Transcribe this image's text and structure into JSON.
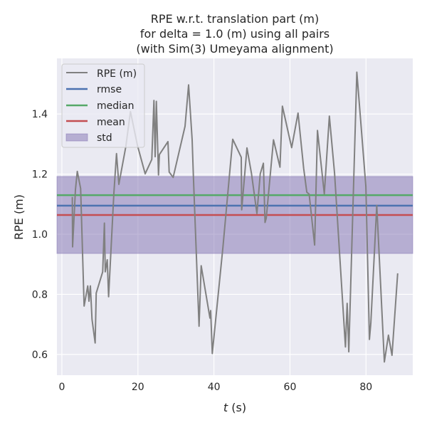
{
  "chart_data": {
    "type": "line",
    "title": [
      "RPE w.r.t. translation part (m)",
      "for delta = 1.0 (m) using all pairs",
      "(with Sim(3) Umeyama alignment)"
    ],
    "xlabel_italic": "t",
    "xlabel_unit": " (s)",
    "ylabel": "RPE (m)",
    "xlim": [
      -1.3,
      92.3
    ],
    "ylim": [
      0.531,
      1.585
    ],
    "xticks": [
      0,
      20,
      40,
      60,
      80
    ],
    "xtick_labels": [
      "0",
      "20",
      "40",
      "60",
      "80"
    ],
    "yticks": [
      0.6,
      0.8,
      1.0,
      1.2,
      1.4
    ],
    "ytick_labels": [
      "0.6",
      "0.8",
      "1.0",
      "1.2",
      "1.4"
    ],
    "grid": true,
    "legend_position": "top-left",
    "legend": [
      "RPE (m)",
      "rmse",
      "median",
      "mean",
      "std"
    ],
    "colors": {
      "rpe": "#808080",
      "rmse": "#4c72b0",
      "median": "#55a868",
      "mean": "#c44e52",
      "std": "#8172b2",
      "bg": "#eaeaf2"
    },
    "stats": {
      "rmse": 1.095,
      "median": 1.13,
      "mean": 1.064,
      "std": 0.128
    },
    "series": [
      {
        "name": "RPE (m)",
        "x": [
          2.75,
          2.81,
          3.56,
          4.06,
          4.93,
          5.86,
          6.8,
          7.12,
          7.49,
          7.92,
          8.75,
          9.04,
          10.73,
          11.18,
          11.42,
          11.93,
          12.3,
          13.67,
          14.36,
          14.98,
          16.8,
          18.03,
          19.91,
          21.91,
          23.65,
          24.21,
          24.53,
          24.85,
          25.41,
          25.66,
          27.9,
          28.22,
          29.27,
          32.4,
          33.33,
          34.27,
          34.59,
          36.09,
          36.65,
          38.95,
          39.14,
          39.57,
          42.38,
          44.94,
          47.19,
          47.3,
          48.69,
          49.87,
          51.31,
          52.19,
          53.0,
          53.43,
          53.75,
          55.67,
          57.36,
          58.0,
          60.43,
          62.12,
          63.61,
          64.42,
          65.04,
          66.48,
          67.23,
          69.04,
          70.36,
          71.72,
          74.59,
          75.04,
          75.47,
          77.58,
          79.96,
          80.9,
          81.27,
          82.83,
          84.83,
          85.9,
          86.84,
          88.33
        ],
        "y": [
          1.124,
          0.958,
          1.148,
          1.209,
          1.152,
          0.761,
          0.828,
          0.777,
          0.828,
          0.717,
          0.638,
          0.804,
          0.875,
          1.037,
          0.875,
          0.915,
          0.792,
          1.136,
          1.268,
          1.166,
          1.29,
          1.408,
          1.294,
          1.201,
          1.249,
          1.445,
          1.258,
          1.442,
          1.197,
          1.265,
          1.308,
          1.207,
          1.189,
          1.359,
          1.497,
          1.314,
          1.195,
          0.694,
          0.895,
          0.721,
          0.746,
          0.603,
          0.958,
          1.316,
          1.256,
          1.081,
          1.287,
          1.203,
          1.069,
          1.201,
          1.236,
          1.039,
          1.053,
          1.314,
          1.223,
          1.426,
          1.288,
          1.403,
          1.219,
          1.14,
          1.133,
          0.964,
          1.345,
          1.134,
          1.393,
          1.203,
          0.625,
          0.77,
          0.609,
          1.539,
          1.159,
          0.65,
          0.705,
          1.096,
          0.575,
          0.664,
          0.597,
          0.87
        ]
      }
    ]
  }
}
